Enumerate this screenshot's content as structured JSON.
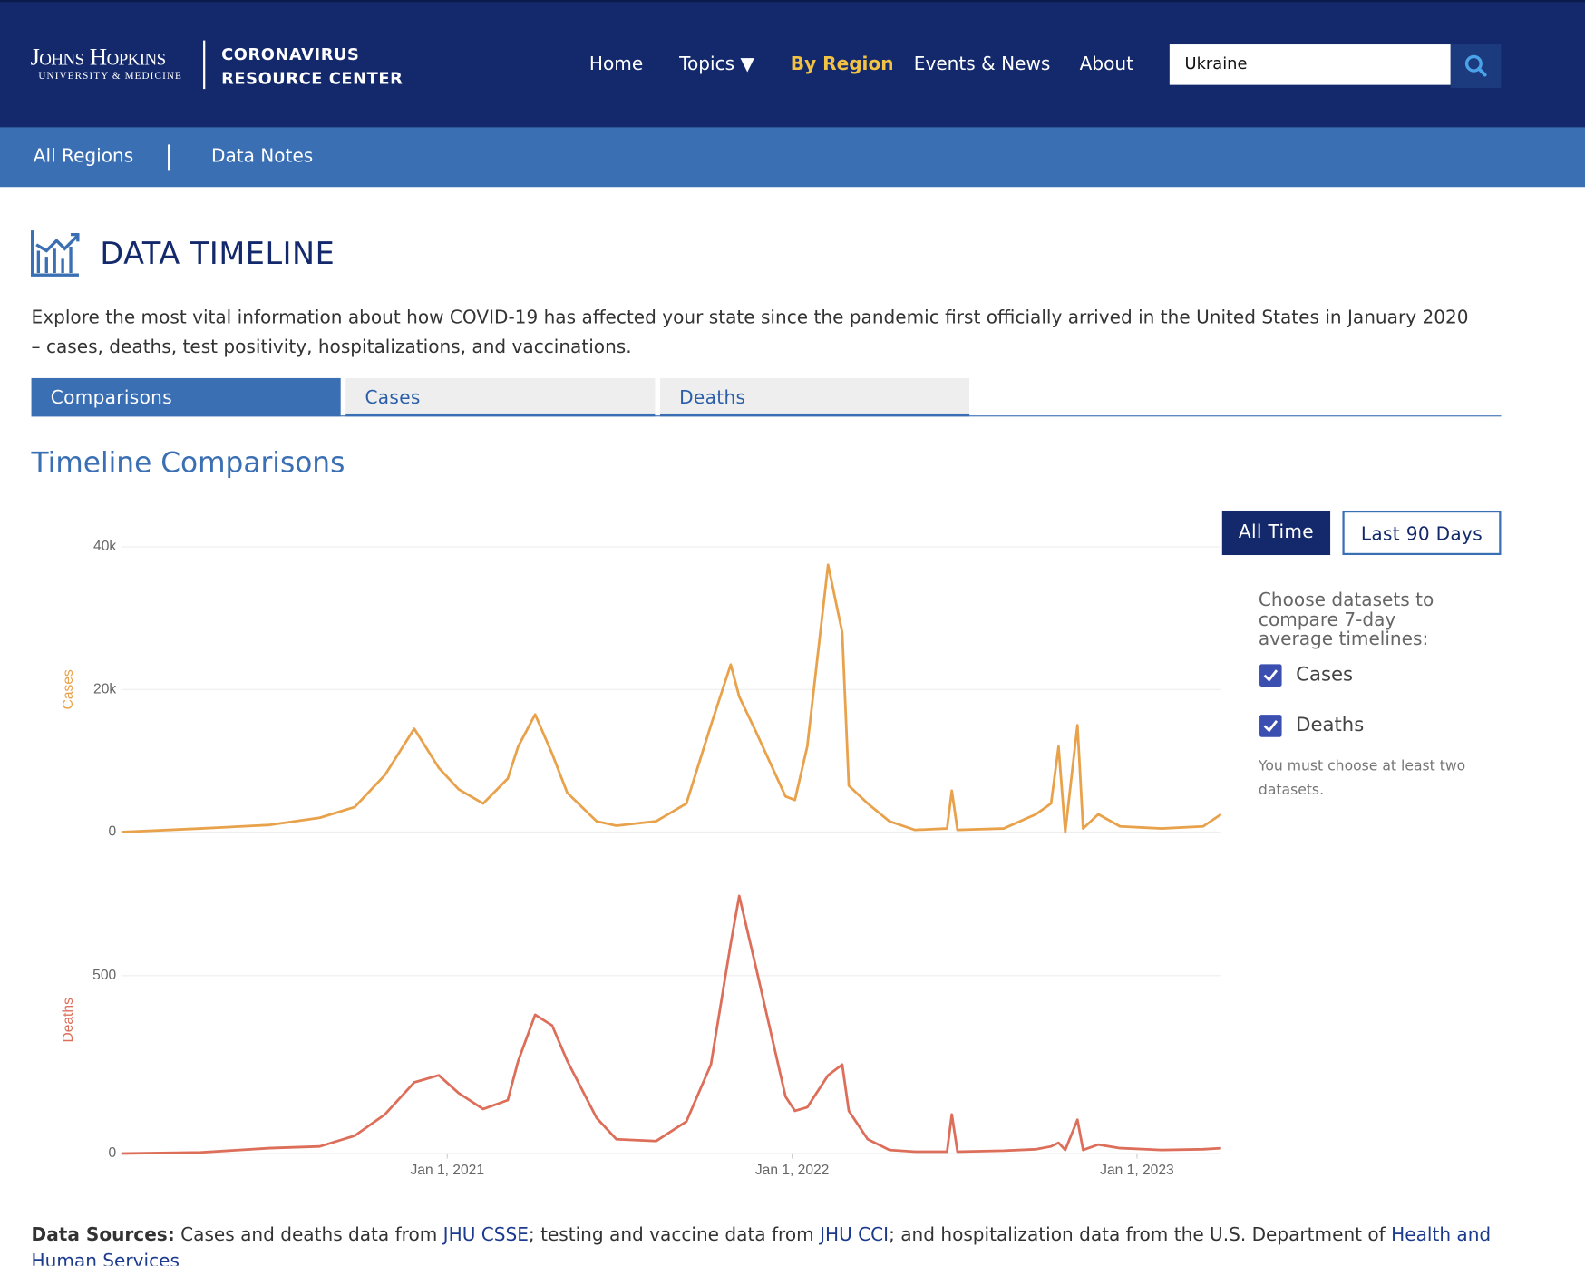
{
  "header": {
    "logo_line1": "Johns Hopkins",
    "logo_line2": "University & Medicine",
    "site_title_1": "CORONAVIRUS",
    "site_title_2": "RESOURCE CENTER",
    "nav": [
      "Home",
      "Topics ▼",
      "By Region",
      "Events & News",
      "About"
    ],
    "search_value": "Ukraine"
  },
  "subnav": [
    "All Regions",
    "Data Notes"
  ],
  "page": {
    "title": "DATA TIMELINE",
    "intro": "Explore the most vital information about how COVID-19 has affected your state since the pandemic first officially arrived in the United States in January 2020 – cases, deaths, test positivity, hospitalizations, and vaccinations.",
    "tabs": [
      "Comparisons",
      "Cases",
      "Deaths"
    ],
    "section_title": "Timeline Comparisons",
    "range_buttons": [
      "All Time",
      "Last 90 Days"
    ],
    "dataset_prompt": "Choose datasets to compare 7-day average timelines:",
    "datasets": [
      "Cases",
      "Deaths"
    ],
    "note": "You must choose at least two datasets."
  },
  "footer": {
    "label": "Data Sources:",
    "t1": " Cases and deaths data from ",
    "link1": "JHU CSSE",
    "t2": "; testing and vaccine data from ",
    "link2": "JHU CCI",
    "t3": "; and hospitalization data from the U.S. Department of ",
    "link3": "Health and Human Services"
  },
  "chart_data": [
    {
      "type": "line",
      "y_label": "Cases",
      "color": "#e9a24c",
      "grid": true,
      "x": [
        "2020-01-22",
        "2020-04-15",
        "2020-06-27",
        "2020-08-19",
        "2020-09-25",
        "2020-10-27",
        "2020-11-27",
        "2020-12-23",
        "2021-01-13",
        "2021-02-08",
        "2021-03-06",
        "2021-03-17",
        "2021-04-04",
        "2021-04-22",
        "2021-05-08",
        "2021-06-08",
        "2021-06-29",
        "2021-08-10",
        "2021-09-11",
        "2021-10-07",
        "2021-10-28",
        "2021-11-06",
        "2021-11-24",
        "2021-12-25",
        "2022-01-04",
        "2022-01-17",
        "2022-02-08",
        "2022-02-23",
        "2022-03-02",
        "2022-03-22",
        "2022-04-14",
        "2022-05-11",
        "2022-06-14",
        "2022-06-19",
        "2022-06-25",
        "2022-08-13",
        "2022-09-16",
        "2022-10-02",
        "2022-10-10",
        "2022-10-17",
        "2022-10-30",
        "2022-11-05",
        "2022-11-21",
        "2022-12-14",
        "2023-01-27",
        "2023-03-12",
        "2023-03-31"
      ],
      "values": [
        0,
        500,
        1000,
        2000,
        3500,
        8000,
        14500,
        9000,
        6000,
        4000,
        7500,
        12000,
        16500,
        11000,
        5500,
        1500,
        900,
        1500,
        4000,
        15000,
        23500,
        19000,
        14000,
        5000,
        4500,
        12000,
        37500,
        28000,
        6500,
        4000,
        1500,
        300,
        500,
        5800,
        300,
        500,
        2500,
        4000,
        12000,
        0,
        15000,
        500,
        2500,
        800,
        500,
        800,
        2500
      ],
      "xlim": [
        "2020-01-22",
        "2023-03-31"
      ],
      "ylim": [
        0,
        40000
      ],
      "yticks": [
        0,
        {
          "value": 20000,
          "label": "20k"
        },
        {
          "value": 40000,
          "label": "40k"
        }
      ]
    },
    {
      "type": "line",
      "y_label": "Deaths",
      "color": "#dc6e5a",
      "grid": true,
      "x": [
        "2020-01-22",
        "2020-04-15",
        "2020-06-27",
        "2020-08-19",
        "2020-09-25",
        "2020-10-27",
        "2020-11-27",
        "2020-12-23",
        "2021-01-13",
        "2021-02-08",
        "2021-03-06",
        "2021-03-17",
        "2021-04-04",
        "2021-04-22",
        "2021-05-08",
        "2021-06-08",
        "2021-06-29",
        "2021-08-10",
        "2021-09-11",
        "2021-10-07",
        "2021-10-28",
        "2021-11-06",
        "2021-11-24",
        "2021-12-25",
        "2022-01-04",
        "2022-01-17",
        "2022-02-08",
        "2022-02-23",
        "2022-03-02",
        "2022-03-22",
        "2022-04-14",
        "2022-05-11",
        "2022-06-14",
        "2022-06-19",
        "2022-06-25",
        "2022-08-13",
        "2022-09-16",
        "2022-10-02",
        "2022-10-10",
        "2022-10-17",
        "2022-10-30",
        "2022-11-05",
        "2022-11-21",
        "2022-12-14",
        "2023-01-27",
        "2023-03-12",
        "2023-03-31"
      ],
      "values": [
        0,
        3,
        15,
        20,
        50,
        110,
        200,
        220,
        170,
        125,
        150,
        260,
        390,
        360,
        260,
        100,
        40,
        35,
        90,
        250,
        590,
        724,
        520,
        160,
        120,
        130,
        220,
        250,
        120,
        40,
        10,
        5,
        5,
        110,
        5,
        8,
        12,
        20,
        30,
        10,
        95,
        10,
        25,
        15,
        10,
        12,
        15
      ],
      "xlim": [
        "2020-01-22",
        "2023-03-31"
      ],
      "ylim": [
        0,
        750
      ],
      "yticks": [
        0,
        500
      ],
      "xticks": [
        {
          "value": "2021-01-01",
          "label": "Jan 1, 2021"
        },
        {
          "value": "2022-01-01",
          "label": "Jan 1, 2022"
        },
        {
          "value": "2023-01-01",
          "label": "Jan 1, 2023"
        }
      ]
    }
  ]
}
